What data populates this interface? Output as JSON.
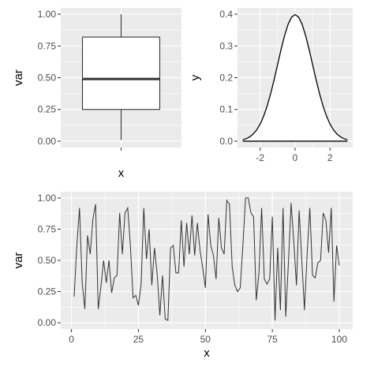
{
  "chart_data": [
    {
      "type": "box",
      "xlabel": "x",
      "ylabel": "var",
      "ylim": [
        -0.05,
        1.05
      ],
      "yticks": [
        {
          "value": 0.0,
          "label": "0.00"
        },
        {
          "value": 0.25,
          "label": "0.25"
        },
        {
          "value": 0.5,
          "label": "0.50"
        },
        {
          "value": 0.75,
          "label": "0.75"
        },
        {
          "value": 1.0,
          "label": "1.00"
        }
      ],
      "box": {
        "min": 0.01,
        "q1": 0.25,
        "median": 0.49,
        "q3": 0.82,
        "max": 1.0
      },
      "grid": true,
      "panel_background": "#ebebeb",
      "box_fill": "#ffffff",
      "box_stroke": "#333333"
    },
    {
      "type": "area",
      "xlabel": "",
      "ylabel": "y",
      "xlim": [
        -3.3,
        3.3
      ],
      "ylim": [
        -0.02,
        0.42
      ],
      "xticks": [
        {
          "value": -2,
          "label": "-2"
        },
        {
          "value": 0,
          "label": "0"
        },
        {
          "value": 2,
          "label": "2"
        }
      ],
      "yticks": [
        {
          "value": 0.0,
          "label": "0.0"
        },
        {
          "value": 0.1,
          "label": "0.1"
        },
        {
          "value": 0.2,
          "label": "0.2"
        },
        {
          "value": 0.3,
          "label": "0.3"
        },
        {
          "value": 0.4,
          "label": "0.4"
        }
      ],
      "x": [
        -3.0,
        -2.8,
        -2.6,
        -2.4,
        -2.2,
        -2.0,
        -1.8,
        -1.6,
        -1.4,
        -1.2,
        -1.0,
        -0.8,
        -0.6,
        -0.4,
        -0.2,
        0.0,
        0.2,
        0.4,
        0.6,
        0.8,
        1.0,
        1.2,
        1.4,
        1.6,
        1.8,
        2.0,
        2.2,
        2.4,
        2.6,
        2.8,
        3.0
      ],
      "y": [
        0.0044,
        0.0079,
        0.0136,
        0.0224,
        0.0355,
        0.054,
        0.079,
        0.1109,
        0.1497,
        0.1942,
        0.242,
        0.2897,
        0.3332,
        0.3683,
        0.391,
        0.3989,
        0.391,
        0.3683,
        0.3332,
        0.2897,
        0.242,
        0.1942,
        0.1497,
        0.1109,
        0.079,
        0.054,
        0.0355,
        0.0224,
        0.0136,
        0.0079,
        0.0044
      ],
      "grid": true,
      "panel_background": "#ebebeb",
      "fill": "#ffffff",
      "stroke": "#000000"
    },
    {
      "type": "line",
      "xlabel": "x",
      "ylabel": "var",
      "xlim": [
        -4,
        105
      ],
      "ylim": [
        -0.05,
        1.05
      ],
      "xticks": [
        {
          "value": 0,
          "label": "0"
        },
        {
          "value": 25,
          "label": "25"
        },
        {
          "value": 50,
          "label": "50"
        },
        {
          "value": 75,
          "label": "75"
        },
        {
          "value": 100,
          "label": "100"
        }
      ],
      "yticks": [
        {
          "value": 0.0,
          "label": "0.00"
        },
        {
          "value": 0.25,
          "label": "0.25"
        },
        {
          "value": 0.5,
          "label": "0.50"
        },
        {
          "value": 0.75,
          "label": "0.75"
        },
        {
          "value": 1.0,
          "label": "1.00"
        }
      ],
      "x": [
        1,
        2,
        3,
        4,
        5,
        6,
        7,
        8,
        9,
        10,
        11,
        12,
        13,
        14,
        15,
        16,
        17,
        18,
        19,
        20,
        21,
        22,
        23,
        24,
        25,
        26,
        27,
        28,
        29,
        30,
        31,
        32,
        33,
        34,
        35,
        36,
        37,
        38,
        39,
        40,
        41,
        42,
        43,
        44,
        45,
        46,
        47,
        48,
        49,
        50,
        51,
        52,
        53,
        54,
        55,
        56,
        57,
        58,
        59,
        60,
        61,
        62,
        63,
        64,
        65,
        66,
        67,
        68,
        69,
        70,
        71,
        72,
        73,
        74,
        75,
        76,
        77,
        78,
        79,
        80,
        81,
        82,
        83,
        84,
        85,
        86,
        87,
        88,
        89,
        90,
        91,
        92,
        93,
        94,
        95,
        96,
        97,
        98,
        99,
        100
      ],
      "y": [
        0.21,
        0.62,
        0.92,
        0.32,
        0.11,
        0.7,
        0.55,
        0.83,
        0.95,
        0.11,
        0.29,
        0.5,
        0.32,
        0.5,
        0.24,
        0.36,
        0.38,
        0.88,
        0.55,
        0.88,
        0.92,
        0.62,
        0.2,
        0.22,
        0.14,
        0.31,
        0.92,
        0.51,
        0.75,
        0.3,
        0.6,
        0.39,
        0.06,
        0.38,
        0.03,
        0.02,
        0.6,
        0.62,
        0.4,
        0.4,
        0.82,
        0.45,
        0.8,
        0.55,
        0.86,
        0.54,
        0.8,
        0.58,
        0.44,
        0.28,
        0.87,
        0.62,
        0.54,
        0.35,
        0.84,
        0.6,
        0.55,
        0.98,
        0.95,
        0.45,
        0.3,
        0.25,
        0.28,
        0.62,
        1.0,
        1.0,
        0.88,
        0.85,
        0.18,
        0.4,
        0.92,
        0.35,
        0.31,
        0.35,
        0.85,
        0.02,
        0.6,
        0.1,
        0.92,
        0.05,
        0.48,
        0.96,
        0.65,
        0.3,
        0.9,
        0.5,
        0.1,
        0.56,
        0.92,
        0.38,
        0.36,
        0.48,
        0.5,
        0.88,
        0.82,
        0.56,
        0.92,
        0.17,
        0.62,
        0.46
      ],
      "grid": true,
      "panel_background": "#ebebeb",
      "stroke": "#333333"
    }
  ]
}
